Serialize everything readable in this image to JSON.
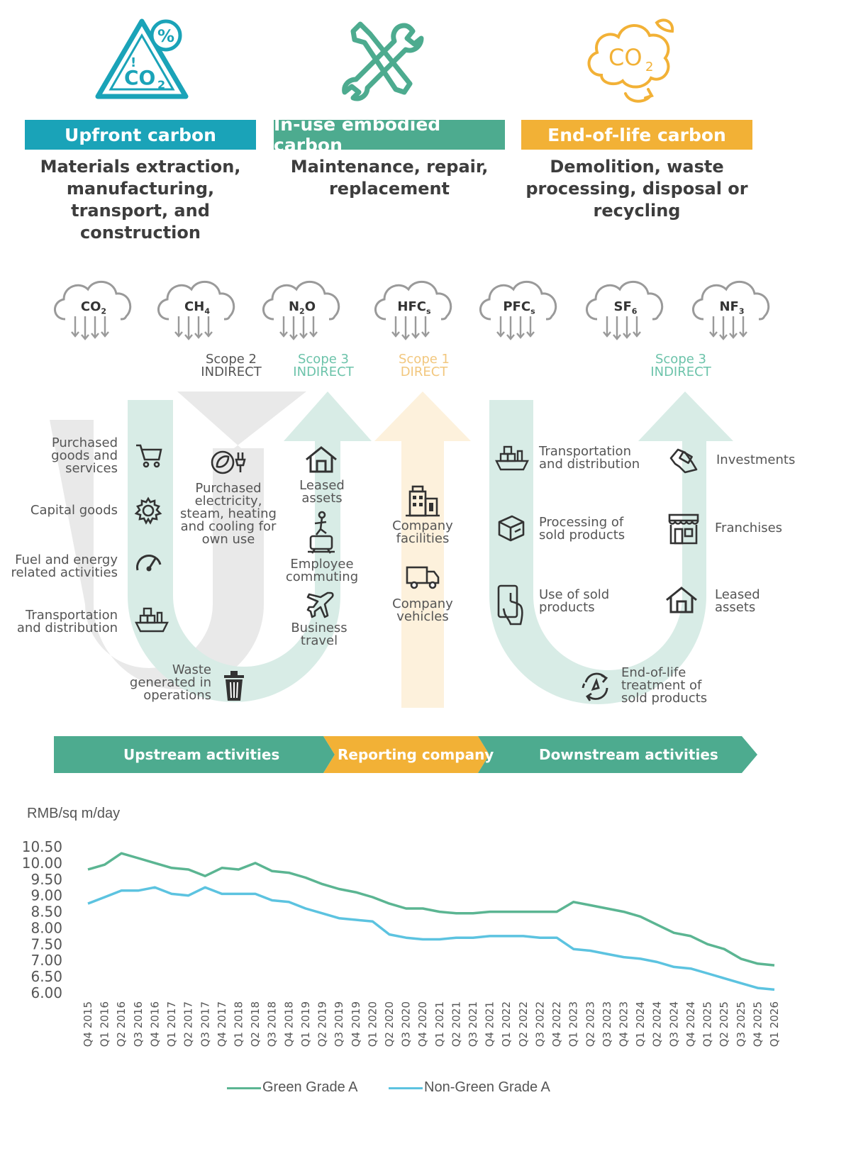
{
  "header": {
    "columns": [
      {
        "title": "Upfront carbon",
        "color": "#1aa3b8",
        "desc": [
          "Materials extraction,",
          "manufacturing,",
          "transport, and",
          "construction"
        ]
      },
      {
        "title": "In-use embodied carbon",
        "color": "#4dab8f",
        "desc": [
          "Maintenance, repair,",
          "replacement"
        ]
      },
      {
        "title": "End-of-life carbon",
        "color": "#f2b136",
        "desc": [
          "Demolition, waste",
          "processing, disposal or",
          "recycling"
        ]
      }
    ],
    "icon_labels": {
      "co2_icon": "CO",
      "co2_sub": "2",
      "percent": "%"
    }
  },
  "gases": [
    {
      "main": "CO",
      "sub": "2"
    },
    {
      "main": "CH",
      "sub": "4"
    },
    {
      "main": "N",
      "sub": "2",
      "tail": "O"
    },
    {
      "main": "HFC",
      "sub": "s"
    },
    {
      "main": "PFC",
      "sub": "s"
    },
    {
      "main": "SF",
      "sub": "6"
    },
    {
      "main": "NF",
      "sub": "3"
    }
  ],
  "scopes": [
    {
      "line1": "Scope 2",
      "line2": "INDIRECT",
      "color": "#555555"
    },
    {
      "line1": "Scope 3",
      "line2": "INDIRECT",
      "color": "#6cc3aa"
    },
    {
      "line1": "Scope 1",
      "line2": "DIRECT",
      "color": "#f2c77e"
    },
    {
      "line1": "Scope 3",
      "line2": "INDIRECT",
      "color": "#6cc3aa"
    }
  ],
  "upstream_labels": {
    "purchased_goods": [
      "Purchased",
      "goods and",
      "services"
    ],
    "capital_goods": [
      "Capital goods"
    ],
    "fuel_energy": [
      "Fuel and energy",
      "related activities"
    ],
    "transport": [
      "Transportation",
      "and distribution"
    ],
    "waste": [
      "Waste",
      "generated in",
      "operations"
    ],
    "electricity": [
      "Purchased",
      "electricity,",
      "steam, heating",
      "and cooling for",
      "own use"
    ],
    "leased": [
      "Leased",
      "assets"
    ],
    "commuting": [
      "Employee",
      "commuting"
    ],
    "travel": [
      "Business",
      "travel"
    ]
  },
  "company_labels": {
    "facilities": [
      "Company",
      "facilities"
    ],
    "vehicles": [
      "Company",
      "vehicles"
    ]
  },
  "downstream_labels": {
    "transport": [
      "Transportation",
      "and distribution"
    ],
    "processing": [
      "Processing of",
      "sold products"
    ],
    "use": [
      "Use of sold",
      "products"
    ],
    "eol": [
      "End-of-life",
      "treatment of",
      "sold products"
    ],
    "investments": [
      "Investments"
    ],
    "franchises": [
      "Franchises"
    ],
    "leased": [
      "Leased",
      "assets"
    ]
  },
  "flow_bar": {
    "upstream": "Upstream activities",
    "reporting": "Reporting company",
    "downstream": "Downstream activities"
  },
  "colors": {
    "teal": "#4dab8f",
    "teal_light": "#d8ece6",
    "grey_light": "#e9e9e9",
    "yellow": "#f2b136",
    "yellow_light": "#fdf1dc",
    "cyan": "#1aa3b8",
    "green_line": "#5bb592",
    "blue_line": "#5cc3e0"
  },
  "chart_data": {
    "type": "line",
    "ylabel": "RMB/sq m/day",
    "ylim": [
      6.0,
      10.5
    ],
    "yticks": [
      "10.50",
      "10.00",
      "9.50",
      "9.00",
      "8.50",
      "8.00",
      "7.50",
      "7.00",
      "6.50",
      "6.00"
    ],
    "categories": [
      "Q4 2015",
      "Q1 2016",
      "Q2 2016",
      "Q3 2016",
      "Q4 2016",
      "Q1 2017",
      "Q2 2017",
      "Q3 2017",
      "Q4 2017",
      "Q1 2018",
      "Q2 2018",
      "Q3 2018",
      "Q4 2018",
      "Q1 2019",
      "Q2 2019",
      "Q3 2019",
      "Q4 2019",
      "Q1 2020",
      "Q2 2020",
      "Q3 2020",
      "Q4 2020",
      "Q1 2021",
      "Q2 2021",
      "Q3 2021",
      "Q4 2021",
      "Q1 2022",
      "Q2 2022",
      "Q3 2022",
      "Q4 2022",
      "Q1 2023",
      "Q2 2023",
      "Q3 2023",
      "Q4 2023",
      "Q1 2024",
      "Q2 2024",
      "Q3 2024",
      "Q4 2024",
      "Q1 2025",
      "Q2 2025",
      "Q3 2025",
      "Q4 2025",
      "Q1 2026"
    ],
    "series": [
      {
        "name": "Green Grade A",
        "color": "#5bb592",
        "values": [
          9.8,
          9.95,
          10.3,
          10.15,
          10.0,
          9.85,
          9.8,
          9.6,
          9.85,
          9.8,
          10.0,
          9.75,
          9.7,
          9.55,
          9.35,
          9.2,
          9.1,
          8.95,
          8.75,
          8.6,
          8.6,
          8.5,
          8.45,
          8.45,
          8.5,
          8.5,
          8.5,
          8.5,
          8.5,
          8.8,
          8.7,
          8.6,
          8.5,
          8.35,
          8.1,
          7.85,
          7.75,
          7.5,
          7.35,
          7.05,
          6.9,
          6.85
        ]
      },
      {
        "name": "Non-Green Grade A",
        "color": "#5cc3e0",
        "values": [
          8.75,
          8.95,
          9.15,
          9.15,
          9.25,
          9.05,
          9.0,
          9.25,
          9.05,
          9.05,
          9.05,
          8.85,
          8.8,
          8.6,
          8.45,
          8.3,
          8.25,
          8.2,
          7.8,
          7.7,
          7.65,
          7.65,
          7.7,
          7.7,
          7.75,
          7.75,
          7.75,
          7.7,
          7.7,
          7.35,
          7.3,
          7.2,
          7.1,
          7.05,
          6.95,
          6.8,
          6.75,
          6.6,
          6.45,
          6.3,
          6.15,
          6.1
        ]
      }
    ],
    "legend_position": "bottom"
  }
}
